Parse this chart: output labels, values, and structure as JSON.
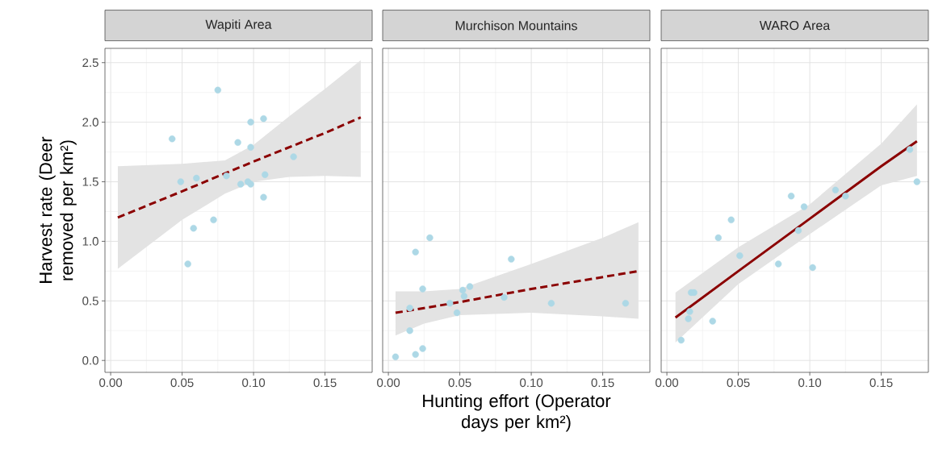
{
  "chart_data": [
    {
      "type": "scatter",
      "title": "Wapiti Area",
      "ylabel": "Harvest rate (Deer removed per km²)",
      "xlim": [
        -0.004,
        0.183
      ],
      "ylim": [
        -0.1,
        2.62
      ],
      "grid": true,
      "xticks": [
        {
          "value": 0,
          "label": "0.00"
        },
        {
          "value": 0.05,
          "label": "0.05"
        },
        {
          "value": 0.1,
          "label": "0.10"
        },
        {
          "value": 0.15,
          "label": "0.15"
        }
      ],
      "yticks": [
        {
          "value": 0,
          "label": "0.0"
        },
        {
          "value": 0.5,
          "label": "0.5"
        },
        {
          "value": 1,
          "label": "1.0"
        },
        {
          "value": 1.5,
          "label": "1.5"
        },
        {
          "value": 2,
          "label": "2.0"
        },
        {
          "value": 2.5,
          "label": "2.5"
        }
      ],
      "series": [
        {
          "type": "line",
          "color": "#8b0000",
          "line_style": "dashed",
          "x": [
            0.005,
            0.05,
            0.08,
            0.1,
            0.125,
            0.15,
            0.175
          ],
          "values": [
            1.2,
            1.42,
            1.57,
            1.67,
            1.79,
            1.91,
            2.04
          ],
          "lower": [
            0.77,
            1.18,
            1.4,
            1.5,
            1.54,
            1.55,
            1.54
          ],
          "upper": [
            1.63,
            1.65,
            1.68,
            1.81,
            2.05,
            2.28,
            2.52
          ]
        },
        {
          "color": "#add8e6",
          "marker": "circle",
          "x": [
            0.043,
            0.049,
            0.06,
            0.075,
            0.081,
            0.089,
            0.098,
            0.098,
            0.107,
            0.091,
            0.096,
            0.098,
            0.108,
            0.107,
            0.128,
            0.072,
            0.058,
            0.054
          ],
          "values": [
            1.86,
            1.5,
            1.53,
            2.27,
            1.55,
            1.83,
            2.0,
            1.79,
            2.03,
            1.48,
            1.5,
            1.48,
            1.56,
            1.37,
            1.71,
            1.18,
            1.11,
            0.81
          ]
        }
      ]
    },
    {
      "type": "scatter",
      "title": "Murchison Mountains",
      "xlabel": "Hunting effort (Operator days per km²)",
      "xlim": [
        -0.004,
        0.183
      ],
      "ylim": [
        -0.1,
        2.62
      ],
      "grid": true,
      "tick_labels": "x",
      "xticks": [
        {
          "value": 0,
          "label": "0.00"
        },
        {
          "value": 0.05,
          "label": "0.05"
        },
        {
          "value": 0.1,
          "label": "0.10"
        },
        {
          "value": 0.15,
          "label": "0.15"
        }
      ],
      "yticks": [
        {
          "value": 0,
          "label": null
        },
        {
          "value": 0.5,
          "label": null
        },
        {
          "value": 1,
          "label": null
        },
        {
          "value": 1.5,
          "label": null
        },
        {
          "value": 2,
          "label": null
        },
        {
          "value": 2.5,
          "label": null
        }
      ],
      "series": [
        {
          "type": "line",
          "color": "#8b0000",
          "line_style": "dashed",
          "x": [
            0.005,
            0.025,
            0.05,
            0.1,
            0.15,
            0.175
          ],
          "values": [
            0.4,
            0.44,
            0.49,
            0.6,
            0.7,
            0.75
          ],
          "lower": [
            0.21,
            0.31,
            0.38,
            0.4,
            0.37,
            0.35
          ],
          "upper": [
            0.58,
            0.58,
            0.6,
            0.81,
            1.03,
            1.16
          ]
        },
        {
          "color": "#add8e6",
          "marker": "circle",
          "x": [
            0.005,
            0.015,
            0.015,
            0.019,
            0.019,
            0.024,
            0.024,
            0.029,
            0.043,
            0.048,
            0.052,
            0.053,
            0.057,
            0.081,
            0.086,
            0.114,
            0.166
          ],
          "values": [
            0.03,
            0.25,
            0.44,
            0.91,
            0.05,
            0.1,
            0.6,
            1.03,
            0.48,
            0.4,
            0.59,
            0.54,
            0.62,
            0.53,
            0.85,
            0.48,
            0.48
          ]
        }
      ]
    },
    {
      "type": "scatter",
      "title": "WARO Area",
      "xlim": [
        -0.004,
        0.183
      ],
      "ylim": [
        -0.1,
        2.62
      ],
      "grid": true,
      "tick_labels": "x",
      "xticks": [
        {
          "value": 0,
          "label": "0.00"
        },
        {
          "value": 0.05,
          "label": "0.05"
        },
        {
          "value": 0.1,
          "label": "0.10"
        },
        {
          "value": 0.15,
          "label": "0.15"
        }
      ],
      "yticks": [
        {
          "value": 0,
          "label": null
        },
        {
          "value": 0.5,
          "label": null
        },
        {
          "value": 1,
          "label": null
        },
        {
          "value": 1.5,
          "label": null
        },
        {
          "value": 2,
          "label": null
        },
        {
          "value": 2.5,
          "label": null
        }
      ],
      "series": [
        {
          "type": "line",
          "color": "#8b0000",
          "line_style": "solid",
          "x": [
            0.006,
            0.05,
            0.1,
            0.15,
            0.175
          ],
          "values": [
            0.36,
            0.75,
            1.19,
            1.63,
            1.84
          ],
          "lower": [
            0.15,
            0.64,
            1.06,
            1.47,
            1.55
          ],
          "upper": [
            0.57,
            0.95,
            1.31,
            1.82,
            2.15
          ]
        },
        {
          "color": "#add8e6",
          "marker": "circle",
          "x": [
            0.01,
            0.015,
            0.016,
            0.017,
            0.019,
            0.032,
            0.036,
            0.045,
            0.051,
            0.078,
            0.087,
            0.092,
            0.096,
            0.102,
            0.118,
            0.125,
            0.17,
            0.175
          ],
          "values": [
            0.17,
            0.35,
            0.41,
            0.57,
            0.57,
            0.33,
            1.03,
            1.18,
            0.88,
            0.81,
            1.38,
            1.09,
            1.29,
            0.78,
            1.43,
            1.38,
            1.77,
            1.5
          ]
        }
      ]
    }
  ]
}
